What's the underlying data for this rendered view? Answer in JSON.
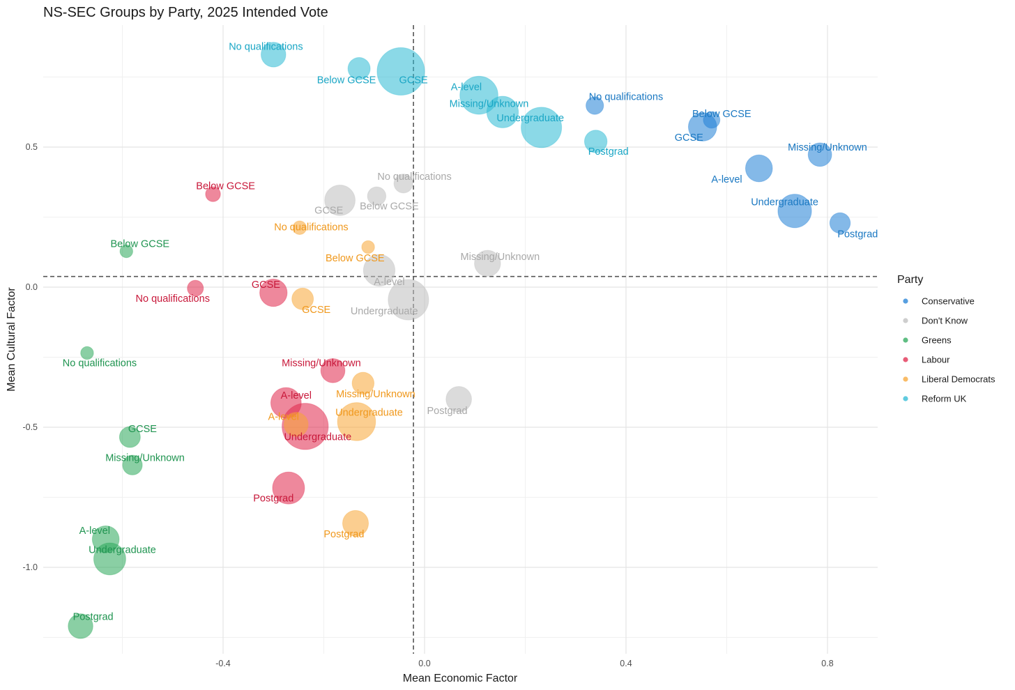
{
  "chart_data": {
    "type": "scatter",
    "title": "NS-SEC Groups by Party, 2025 Intended Vote",
    "xlabel": "Mean Economic Factor",
    "ylabel": "Mean Cultural Factor",
    "xlim": [
      -0.79,
      0.9
    ],
    "ylim": [
      -1.3,
      0.9
    ],
    "x_ticks": [
      -0.4,
      0.0,
      0.4,
      0.8
    ],
    "x_tick_labels": [
      "-0.4",
      "0.0",
      "0.4",
      "0.8"
    ],
    "y_ticks": [
      -1.0,
      -0.5,
      0.0,
      0.5
    ],
    "y_tick_labels": [
      "-1.0",
      "-0.5",
      "0.0",
      "0.5"
    ],
    "reference_lines": {
      "vertical_x": -0.022,
      "horizontal_y": 0.038
    },
    "grid": true,
    "legend": {
      "title": "Party",
      "position": "right",
      "items": [
        {
          "name": "Conservative",
          "color": "#1f7fd6"
        },
        {
          "name": "Don't Know",
          "color": "#bdbdbd"
        },
        {
          "name": "Greens",
          "color": "#2aa85a"
        },
        {
          "name": "Labour",
          "color": "#e0264a"
        },
        {
          "name": "Liberal Democrats",
          "color": "#f7a634"
        },
        {
          "name": "Reform UK",
          "color": "#2bbad4"
        }
      ]
    },
    "series": [
      {
        "name": "Conservative",
        "color": "#1f7fd6",
        "label_color": "#1a78c2",
        "points": [
          {
            "label": "No qualifications",
            "x": 0.338,
            "y": 0.648,
            "size": 1.2,
            "lx": 0.4,
            "ly": 0.68
          },
          {
            "label": "Below GCSE",
            "x": 0.57,
            "y": 0.597,
            "size": 1.0,
            "lx": 0.59,
            "ly": 0.62
          },
          {
            "label": "GCSE",
            "x": 0.552,
            "y": 0.572,
            "size": 4.6,
            "lx": 0.525,
            "ly": 0.535
          },
          {
            "label": "Missing/Unknown",
            "x": 0.785,
            "y": 0.473,
            "size": 2.8,
            "lx": 0.8,
            "ly": 0.5
          },
          {
            "label": "A-level",
            "x": 0.664,
            "y": 0.424,
            "size": 4.0,
            "lx": 0.6,
            "ly": 0.385
          },
          {
            "label": "Undergraduate",
            "x": 0.735,
            "y": 0.272,
            "size": 7.0,
            "lx": 0.715,
            "ly": 0.305
          },
          {
            "label": "Postgrad",
            "x": 0.825,
            "y": 0.229,
            "size": 1.9,
            "lx": 0.86,
            "ly": 0.19
          }
        ]
      },
      {
        "name": "Don't Know",
        "color": "#bdbdbd",
        "label_color": "#a9a9a9",
        "points": [
          {
            "label": "No qualifications",
            "x": -0.042,
            "y": 0.37,
            "size": 1.5,
            "lx": -0.02,
            "ly": 0.395
          },
          {
            "label": "Below GCSE",
            "x": -0.095,
            "y": 0.325,
            "size": 1.4,
            "lx": -0.07,
            "ly": 0.29
          },
          {
            "label": "GCSE",
            "x": -0.168,
            "y": 0.31,
            "size": 5.5,
            "lx": -0.19,
            "ly": 0.275
          },
          {
            "label": "Missing/Unknown",
            "x": 0.125,
            "y": 0.085,
            "size": 3.7,
            "lx": 0.15,
            "ly": 0.11
          },
          {
            "label": "A-level",
            "x": -0.09,
            "y": 0.06,
            "size": 6.0,
            "lx": -0.07,
            "ly": 0.02
          },
          {
            "label": "Undergraduate",
            "x": -0.032,
            "y": -0.045,
            "size": 11.0,
            "lx": -0.08,
            "ly": -0.085
          },
          {
            "label": "Postgrad",
            "x": 0.068,
            "y": -0.4,
            "size": 3.5,
            "lx": 0.045,
            "ly": -0.44
          }
        ]
      },
      {
        "name": "Greens",
        "color": "#2aa85a",
        "label_color": "#1f9450",
        "points": [
          {
            "label": "Below GCSE",
            "x": -0.592,
            "y": 0.128,
            "size": 0.4,
            "lx": -0.565,
            "ly": 0.155
          },
          {
            "label": "No qualifications",
            "x": -0.67,
            "y": -0.235,
            "size": 0.4,
            "lx": -0.645,
            "ly": -0.27
          },
          {
            "label": "GCSE",
            "x": -0.585,
            "y": -0.535,
            "size": 2.0,
            "lx": -0.56,
            "ly": -0.505
          },
          {
            "label": "Missing/Unknown",
            "x": -0.58,
            "y": -0.635,
            "size": 1.7,
            "lx": -0.555,
            "ly": -0.608
          },
          {
            "label": "A-level",
            "x": -0.633,
            "y": -0.9,
            "size": 4.0,
            "lx": -0.655,
            "ly": -0.868
          },
          {
            "label": "Undergraduate",
            "x": -0.625,
            "y": -0.97,
            "size": 6.2,
            "lx": -0.6,
            "ly": -0.937
          },
          {
            "label": "Postgrad",
            "x": -0.683,
            "y": -1.21,
            "size": 3.2,
            "lx": -0.658,
            "ly": -1.175
          }
        ]
      },
      {
        "name": "Labour",
        "color": "#e0264a",
        "label_color": "#c8183a",
        "points": [
          {
            "label": "Below GCSE",
            "x": -0.42,
            "y": 0.332,
            "size": 0.7,
            "lx": -0.395,
            "ly": 0.362
          },
          {
            "label": "No qualifications",
            "x": -0.455,
            "y": -0.004,
            "size": 0.9,
            "lx": -0.5,
            "ly": -0.04
          },
          {
            "label": "GCSE",
            "x": -0.3,
            "y": -0.02,
            "size": 4.2,
            "lx": -0.315,
            "ly": 0.01
          },
          {
            "label": "Missing/Unknown",
            "x": -0.182,
            "y": -0.298,
            "size": 3.0,
            "lx": -0.205,
            "ly": -0.27
          },
          {
            "label": "A-level",
            "x": -0.275,
            "y": -0.413,
            "size": 5.5,
            "lx": -0.255,
            "ly": -0.385
          },
          {
            "label": "Undergraduate",
            "x": -0.237,
            "y": -0.497,
            "size": 15.0,
            "lx": -0.212,
            "ly": -0.533
          },
          {
            "label": "Postgrad",
            "x": -0.27,
            "y": -0.717,
            "size": 6.2,
            "lx": -0.3,
            "ly": -0.753
          }
        ]
      },
      {
        "name": "Liberal Democrats",
        "color": "#f7a634",
        "label_color": "#f0981c",
        "points": [
          {
            "label": "No qualifications",
            "x": -0.248,
            "y": 0.212,
            "size": 0.5,
            "lx": -0.225,
            "ly": 0.215
          },
          {
            "label": "Below GCSE",
            "x": -0.112,
            "y": 0.143,
            "size": 0.4,
            "lx": -0.138,
            "ly": 0.105
          },
          {
            "label": "GCSE",
            "x": -0.242,
            "y": -0.042,
            "size": 2.2,
            "lx": -0.215,
            "ly": -0.08
          },
          {
            "label": "Missing/Unknown",
            "x": -0.122,
            "y": -0.343,
            "size": 2.3,
            "lx": -0.097,
            "ly": -0.38
          },
          {
            "label": "Undergraduate",
            "x": -0.135,
            "y": -0.48,
            "size": 9.5,
            "lx": -0.11,
            "ly": -0.447
          },
          {
            "label": "A-level",
            "x": -0.255,
            "y": -0.49,
            "size": 3.0,
            "lx": -0.28,
            "ly": -0.462
          },
          {
            "label": "Postgrad",
            "x": -0.137,
            "y": -0.843,
            "size": 3.6,
            "lx": -0.16,
            "ly": -0.88
          }
        ]
      },
      {
        "name": "Reform UK",
        "color": "#2bbad4",
        "label_color": "#1aa6c5",
        "points": [
          {
            "label": "No qualifications",
            "x": -0.3,
            "y": 0.83,
            "size": 3.2,
            "lx": -0.315,
            "ly": 0.86
          },
          {
            "label": "Below GCSE",
            "x": -0.13,
            "y": 0.78,
            "size": 2.4,
            "lx": -0.155,
            "ly": 0.74
          },
          {
            "label": "GCSE",
            "x": -0.047,
            "y": 0.77,
            "size": 16.0,
            "lx": -0.022,
            "ly": 0.74
          },
          {
            "label": "A-level",
            "x": 0.108,
            "y": 0.685,
            "size": 9.5,
            "lx": 0.083,
            "ly": 0.715
          },
          {
            "label": "Missing/Unknown",
            "x": 0.155,
            "y": 0.625,
            "size": 6.0,
            "lx": 0.128,
            "ly": 0.655
          },
          {
            "label": "Undergraduate",
            "x": 0.232,
            "y": 0.57,
            "size": 11.0,
            "lx": 0.21,
            "ly": 0.605
          },
          {
            "label": "Postgrad",
            "x": 0.34,
            "y": 0.52,
            "size": 2.5,
            "lx": 0.365,
            "ly": 0.485
          }
        ]
      }
    ]
  }
}
